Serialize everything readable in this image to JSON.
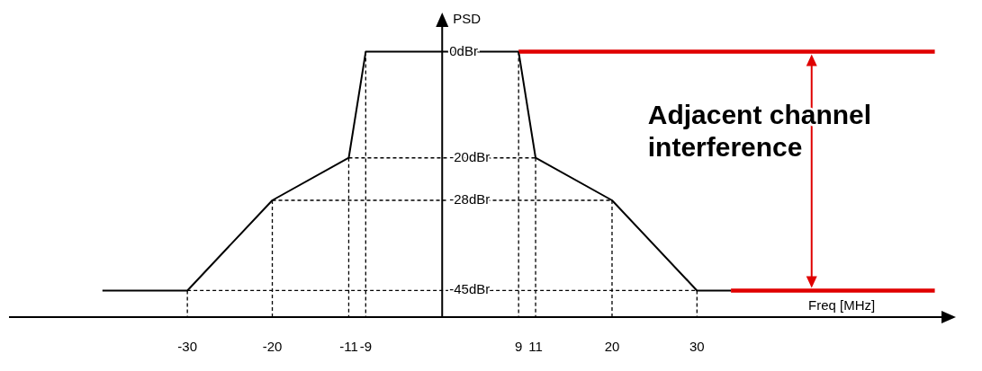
{
  "chart_data": {
    "type": "line",
    "xlabel": "Freq [MHz]",
    "ylabel": "PSD",
    "series": [
      {
        "color": "#000000",
        "x": [
          -40,
          -30,
          -20,
          -11,
          -9,
          9,
          11,
          20,
          30,
          34
        ],
        "values": [
          -45,
          -45,
          -28,
          -20,
          0,
          0,
          -20,
          -28,
          -45,
          -45
        ]
      },
      {
        "color": "#e00000",
        "x": [
          9,
          58
        ],
        "values": [
          0,
          0
        ]
      },
      {
        "color": "#e00000",
        "x": [
          34,
          58
        ],
        "values": [
          -45,
          -45
        ]
      },
      {
        "color": "#000000",
        "x": [
          -11,
          11
        ],
        "values": [
          -20,
          -20
        ],
        "line_style": "dashed"
      },
      {
        "color": "#000000",
        "x": [
          -20,
          20
        ],
        "values": [
          -28,
          -28
        ],
        "line_style": "dashed"
      },
      {
        "color": "#000000",
        "x": [
          -30,
          30
        ],
        "values": [
          -45,
          -45
        ],
        "line_style": "dashed"
      },
      {
        "color": "#000000",
        "x": [
          -30,
          -30
        ],
        "values": [
          -45,
          -50
        ],
        "line_style": "dashed"
      },
      {
        "color": "#000000",
        "x": [
          -20,
          -20
        ],
        "values": [
          -28,
          -50
        ],
        "line_style": "dashed"
      },
      {
        "color": "#000000",
        "x": [
          -11,
          -11
        ],
        "values": [
          -20,
          -50
        ],
        "line_style": "dashed"
      },
      {
        "color": "#000000",
        "x": [
          -9,
          -9
        ],
        "values": [
          0,
          -50
        ],
        "line_style": "dashed"
      },
      {
        "color": "#000000",
        "x": [
          9,
          9
        ],
        "values": [
          0,
          -50
        ],
        "line_style": "dashed"
      },
      {
        "color": "#000000",
        "x": [
          11,
          11
        ],
        "values": [
          -20,
          -50
        ],
        "line_style": "dashed"
      },
      {
        "color": "#000000",
        "x": [
          20,
          20
        ],
        "values": [
          -28,
          -50
        ],
        "line_style": "dashed"
      },
      {
        "color": "#000000",
        "x": [
          30,
          30
        ],
        "values": [
          -45,
          -50
        ],
        "line_style": "dashed"
      }
    ],
    "xlim": [
      -51,
      59
    ],
    "ylim": [
      -50,
      5
    ],
    "xticks": [
      -30,
      -20,
      -11,
      -9,
      9,
      11,
      20,
      30
    ],
    "yticks": [
      {
        "value": 0,
        "label": "0dBr"
      },
      {
        "value": -20,
        "label": "-20dBr"
      },
      {
        "value": -28,
        "label": "-28dBr"
      },
      {
        "value": -45,
        "label": "-45dBr"
      }
    ],
    "annotations": [
      "Adjacent channel interference"
    ],
    "grid": false,
    "marker": "none",
    "line_style": "solid"
  }
}
